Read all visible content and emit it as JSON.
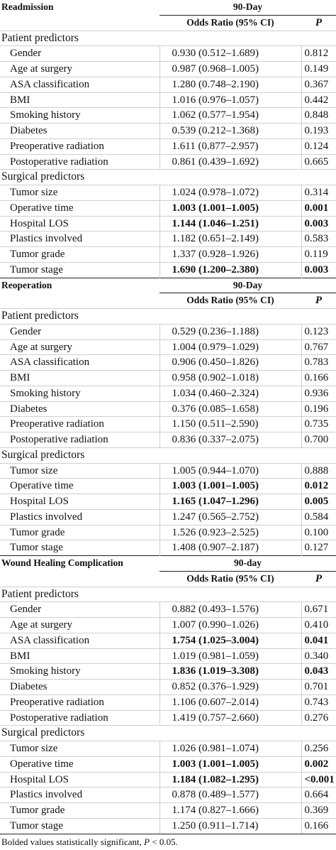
{
  "sections": [
    {
      "title": "Readmission",
      "period": "90-Day",
      "col_or": "Odds Ratio (95% CI)",
      "col_p": "P",
      "groups": [
        {
          "label": "Patient predictors",
          "rows": [
            {
              "name": "Gender",
              "or": "0.930 (0.512–1.689)",
              "p": "0.812",
              "bold": false
            },
            {
              "name": "Age at surgery",
              "or": "0.987 (0.968–1.005)",
              "p": "0.149",
              "bold": false
            },
            {
              "name": "ASA classification",
              "or": "1.280 (0.748–2.190)",
              "p": "0.367",
              "bold": false
            },
            {
              "name": "BMI",
              "or": "1.016 (0.976–1.057)",
              "p": "0.442",
              "bold": false
            },
            {
              "name": "Smoking history",
              "or": "1.062 (0.577–1.954)",
              "p": "0.848",
              "bold": false
            },
            {
              "name": "Diabetes",
              "or": "0.539 (0.212–1.368)",
              "p": "0.193",
              "bold": false
            },
            {
              "name": "Preoperative radiation",
              "or": "1.611 (0.877–2.957)",
              "p": "0.124",
              "bold": false
            },
            {
              "name": "Postoperative radiation",
              "or": "0.861 (0.439–1.692)",
              "p": "0.665",
              "bold": false
            }
          ]
        },
        {
          "label": "Surgical predictors",
          "rows": [
            {
              "name": "Tumor size",
              "or": "1.024 (0.978–1.072)",
              "p": "0.314",
              "bold": false
            },
            {
              "name": "Operative time",
              "or": "1.003 (1.001–1.005)",
              "p": "0.001",
              "bold": true
            },
            {
              "name": "Hospital LOS",
              "or": "1.144 (1.046–1.251)",
              "p": "0.003",
              "bold": true
            },
            {
              "name": "Plastics involved",
              "or": "1.182 (0.651–2.149)",
              "p": "0.583",
              "bold": false
            },
            {
              "name": "Tumor grade",
              "or": "1.337 (0.928–1.926)",
              "p": "0.119",
              "bold": false
            },
            {
              "name": "Tumor stage",
              "or": "1.690 (1.200–2.380)",
              "p": "0.003",
              "bold": true
            }
          ]
        }
      ]
    },
    {
      "title": "Reoperation",
      "period": "90-Day",
      "col_or": "Odds Ratio (95% CI)",
      "col_p": "P",
      "groups": [
        {
          "label": "Patient predictors",
          "rows": [
            {
              "name": "Gender",
              "or": "0.529 (0.236–1.188)",
              "p": "0.123",
              "bold": false
            },
            {
              "name": "Age at surgery",
              "or": "1.004 (0.979–1.029)",
              "p": "0.767",
              "bold": false
            },
            {
              "name": "ASA classification",
              "or": "0.906 (0.450–1.826)",
              "p": "0.783",
              "bold": false
            },
            {
              "name": "BMI",
              "or": "0.958 (0.902–1.018)",
              "p": "0.166",
              "bold": false
            },
            {
              "name": "Smoking history",
              "or": "1.034 (0.460–2.324)",
              "p": "0.936",
              "bold": false
            },
            {
              "name": "Diabetes",
              "or": "0.376 (0.085–1.658)",
              "p": "0.196",
              "bold": false
            },
            {
              "name": "Preoperative radiation",
              "or": "1.150 (0.511–2.590)",
              "p": "0.735",
              "bold": false
            },
            {
              "name": "Postoperative radiation",
              "or": "0.836 (0.337–2.075)",
              "p": "0.700",
              "bold": false
            }
          ]
        },
        {
          "label": "Surgical predictors",
          "rows": [
            {
              "name": "Tumor size",
              "or": "1.005 (0.944–1.070)",
              "p": "0.888",
              "bold": false
            },
            {
              "name": "Operative time",
              "or": "1.003 (1.001–1.005)",
              "p": "0.012",
              "bold": true
            },
            {
              "name": "Hospital LOS",
              "or": "1.165 (1.047–1.296)",
              "p": "0.005",
              "bold": true
            },
            {
              "name": "Plastics involved",
              "or": "1.247 (0.565–2.752)",
              "p": "0.584",
              "bold": false
            },
            {
              "name": "Tumor grade",
              "or": "1.526 (0.923–2.525)",
              "p": "0.100",
              "bold": false
            },
            {
              "name": "Tumor stage",
              "or": "1.408 (0.907–2.187)",
              "p": "0.127",
              "bold": false
            }
          ]
        }
      ]
    },
    {
      "title": "Wound Healing Complication",
      "period": "90-day",
      "col_or": "Odds Ratio (95% CI)",
      "col_p": "P",
      "groups": [
        {
          "label": "Patient predictors",
          "rows": [
            {
              "name": "Gender",
              "or": "0.882 (0.493–1.576)",
              "p": "0.671",
              "bold": false
            },
            {
              "name": "Age at surgery",
              "or": "1.007 (0.990–1.026)",
              "p": "0.410",
              "bold": false
            },
            {
              "name": "ASA classification",
              "or": "1.754 (1.025–3.004)",
              "p": "0.041",
              "bold": true
            },
            {
              "name": "BMI",
              "or": "1.019 (0.981–1.059)",
              "p": "0.340",
              "bold": false
            },
            {
              "name": "Smoking history",
              "or": "1.836 (1.019–3.308)",
              "p": "0.043",
              "bold": true
            },
            {
              "name": "Diabetes",
              "or": "0.852 (0.376–1.929)",
              "p": "0.701",
              "bold": false
            },
            {
              "name": "Preoperative radiation",
              "or": "1.106 (0.607–2.014)",
              "p": "0.743",
              "bold": false
            },
            {
              "name": "Postoperative radiation",
              "or": "1.419 (0.757–2.660)",
              "p": "0.276",
              "bold": false
            }
          ]
        },
        {
          "label": "Surgical predictors",
          "rows": [
            {
              "name": "Tumor size",
              "or": "1.026 (0.981–1.074)",
              "p": "0.256",
              "bold": false
            },
            {
              "name": "Operative time",
              "or": "1.003 (1.001–1.005)",
              "p": "0.002",
              "bold": true
            },
            {
              "name": "Hospital LOS",
              "or": "1.184 (1.082–1.295)",
              "p": "<0.001",
              "bold": true
            },
            {
              "name": "Plastics involved",
              "or": "0.878 (0.489–1.577)",
              "p": "0.664",
              "bold": false
            },
            {
              "name": "Tumor grade",
              "or": "1.174 (0.827–1.666)",
              "p": "0.369",
              "bold": false
            },
            {
              "name": "Tumor stage",
              "or": "1.250 (0.911–1.714)",
              "p": "0.166",
              "bold": false
            }
          ]
        }
      ]
    }
  ],
  "footnote": {
    "text": "Bolded values statistically significant, ",
    "p_symbol": "P",
    "threshold": " < 0.05."
  }
}
